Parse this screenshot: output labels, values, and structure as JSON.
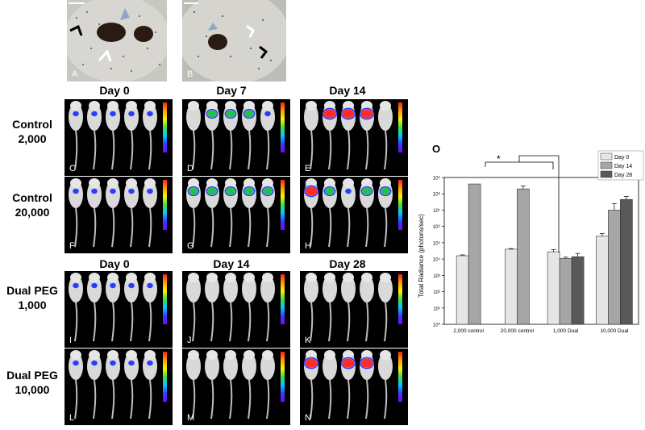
{
  "dish_labels": [
    "A",
    "B"
  ],
  "row_labels": [
    {
      "line1": "Control",
      "line2": "2,000"
    },
    {
      "line1": "Control",
      "line2": "20,000"
    },
    {
      "line1": "Dual PEG",
      "line2": "1,000"
    },
    {
      "line1": "Dual PEG",
      "line2": "10,000"
    }
  ],
  "day_headers_top": [
    "Day 0",
    "Day 7",
    "Day 14"
  ],
  "day_headers_bottom": [
    "Day 0",
    "Day 14",
    "Day 28"
  ],
  "panel_labels": [
    "C",
    "D",
    "E",
    "F",
    "G",
    "H",
    "I",
    "J",
    "K",
    "L",
    "M",
    "N"
  ],
  "colors": {
    "day0": "#e6e6e6",
    "day14": "#a6a6a6",
    "day28": "#595959",
    "signal_high": "#ff2a2a",
    "signal_mid": "#22c244",
    "signal_low": "#2a3cff"
  },
  "chart_data": {
    "type": "bar",
    "panel_letter": "O",
    "ylabel": "Total Radiance (photons/sec)",
    "yscale": "log",
    "ylim": [
      1,
      1000000000
    ],
    "yticks": [
      "10⁰",
      "10¹",
      "10²",
      "10³",
      "10⁴",
      "10⁵",
      "10⁶",
      "10⁷",
      "10⁸",
      "10⁹"
    ],
    "categories": [
      "2,000 control",
      "20,000 control",
      "1,000 Dual",
      "10,000 Dual"
    ],
    "legend": [
      "Day 0",
      "Day 14",
      "Day 28"
    ],
    "legend_position": "top-right",
    "series": [
      {
        "name": "Day 0",
        "values": [
          16000,
          40000,
          28000,
          250000
        ],
        "errors": [
          2000,
          4000,
          10000,
          120000
        ]
      },
      {
        "name": "Day 14",
        "values": [
          400000000,
          200000000,
          11000,
          10000000
        ],
        "errors": [
          0,
          100000000,
          2000,
          15000000
        ]
      },
      {
        "name": "Day 28",
        "values": [
          null,
          null,
          14000,
          45000000
        ],
        "errors": [
          null,
          null,
          8000,
          25000000
        ]
      }
    ],
    "significance": "*"
  }
}
